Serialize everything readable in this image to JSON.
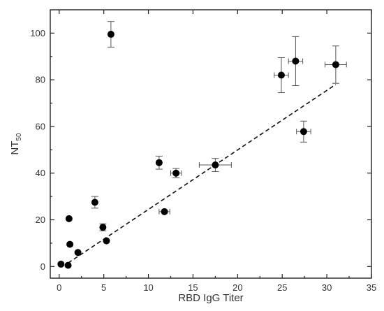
{
  "chart_data": {
    "type": "scatter",
    "title": "",
    "xlabel": "RBD IgG Titer",
    "ylabel_main": "NT",
    "ylabel_sub": "50",
    "xlim": [
      -1,
      35
    ],
    "ylim": [
      -5,
      110
    ],
    "xticks": [
      0,
      5,
      10,
      15,
      20,
      25,
      30,
      35
    ],
    "yticks": [
      0,
      20,
      40,
      60,
      80,
      100
    ],
    "grid": false,
    "series": [
      {
        "points": [
          {
            "x": 0.2,
            "y": 1,
            "xerr": 0,
            "yerr": 0
          },
          {
            "x": 1.0,
            "y": 0.5,
            "xerr": 0,
            "yerr": 0
          },
          {
            "x": 1.1,
            "y": 20.5,
            "xerr": 0,
            "yerr": 0
          },
          {
            "x": 1.2,
            "y": 9.5,
            "xerr": 0,
            "yerr": 0
          },
          {
            "x": 2.1,
            "y": 6,
            "xerr": 0,
            "yerr": 0
          },
          {
            "x": 4.0,
            "y": 27.5,
            "xerr": 0,
            "yerr": 2.5
          },
          {
            "x": 4.9,
            "y": 16.8,
            "xerr": 0,
            "yerr": 1.5
          },
          {
            "x": 5.3,
            "y": 11,
            "xerr": 0,
            "yerr": 0
          },
          {
            "x": 5.8,
            "y": 99.5,
            "xerr": 0,
            "yerr": 5.5
          },
          {
            "x": 11.2,
            "y": 44.5,
            "xerr": 0,
            "yerr": 2.8
          },
          {
            "x": 11.8,
            "y": 23.5,
            "xerr": 0.6,
            "yerr": 0
          },
          {
            "x": 13.1,
            "y": 40,
            "xerr": 0.6,
            "yerr": 2
          },
          {
            "x": 17.5,
            "y": 43.5,
            "xerr": 1.8,
            "yerr": 2.8
          },
          {
            "x": 24.9,
            "y": 82,
            "xerr": 0.8,
            "yerr": 7.5
          },
          {
            "x": 26.5,
            "y": 88,
            "xerr": 0.8,
            "yerr": 10.5
          },
          {
            "x": 27.4,
            "y": 57.8,
            "xerr": 0.8,
            "yerr": 4.5
          },
          {
            "x": 31.0,
            "y": 86.5,
            "xerr": 1.2,
            "yerr": 8
          }
        ]
      }
    ],
    "fit_line": {
      "x1": 1,
      "y1": 1.5,
      "x2": 31,
      "y2": 78
    }
  }
}
